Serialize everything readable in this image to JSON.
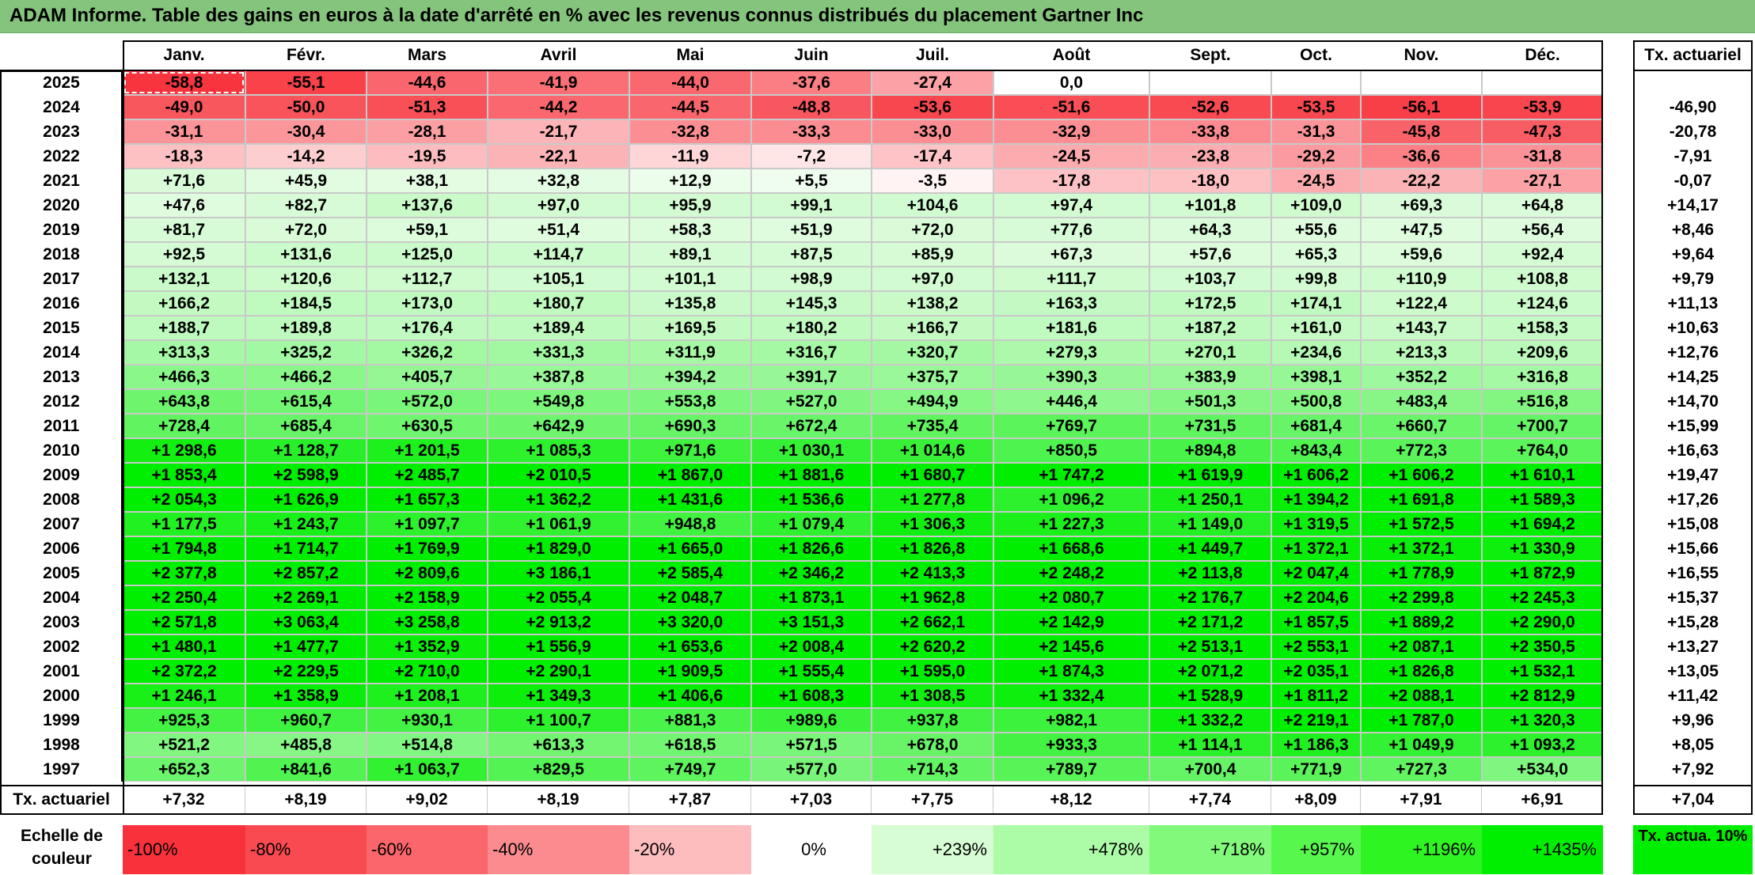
{
  "title": "ADAM Informe. Table des gains en euros à la date d'arrêté en % avec les revenus connus distribués du placement Gartner Inc",
  "months": [
    "Janv.",
    "Févr.",
    "Mars",
    "Avril",
    "Mai",
    "Juin",
    "Juil.",
    "Août",
    "Sept.",
    "Oct.",
    "Nov.",
    "Déc."
  ],
  "tx_header": "Tx. actuariel",
  "rows": [
    {
      "year": "2025",
      "values": [
        "-58,8",
        "-55,1",
        "-44,6",
        "-41,9",
        "-44,0",
        "-37,6",
        "-27,4",
        "0,0",
        "",
        "",
        "",
        ""
      ],
      "tx": ""
    },
    {
      "year": "2024",
      "values": [
        "-49,0",
        "-50,0",
        "-51,3",
        "-44,2",
        "-44,5",
        "-48,8",
        "-53,6",
        "-51,6",
        "-52,6",
        "-53,5",
        "-56,1",
        "-53,9"
      ],
      "tx": "-46,90"
    },
    {
      "year": "2023",
      "values": [
        "-31,1",
        "-30,4",
        "-28,1",
        "-21,7",
        "-32,8",
        "-33,3",
        "-33,0",
        "-32,9",
        "-33,8",
        "-31,3",
        "-45,8",
        "-47,3"
      ],
      "tx": "-20,78"
    },
    {
      "year": "2022",
      "values": [
        "-18,3",
        "-14,2",
        "-19,5",
        "-22,1",
        "-11,9",
        "-7,2",
        "-17,4",
        "-24,5",
        "-23,8",
        "-29,2",
        "-36,6",
        "-31,8"
      ],
      "tx": "-7,91"
    },
    {
      "year": "2021",
      "values": [
        "+71,6",
        "+45,9",
        "+38,1",
        "+32,8",
        "+12,9",
        "+5,5",
        "-3,5",
        "-17,8",
        "-18,0",
        "-24,5",
        "-22,2",
        "-27,1"
      ],
      "tx": "-0,07"
    },
    {
      "year": "2020",
      "values": [
        "+47,6",
        "+82,7",
        "+137,6",
        "+97,0",
        "+95,9",
        "+99,1",
        "+104,6",
        "+97,4",
        "+101,8",
        "+109,0",
        "+69,3",
        "+64,8"
      ],
      "tx": "+14,17"
    },
    {
      "year": "2019",
      "values": [
        "+81,7",
        "+72,0",
        "+59,1",
        "+51,4",
        "+58,3",
        "+51,9",
        "+72,0",
        "+77,6",
        "+64,3",
        "+55,6",
        "+47,5",
        "+56,4"
      ],
      "tx": "+8,46"
    },
    {
      "year": "2018",
      "values": [
        "+92,5",
        "+131,6",
        "+125,0",
        "+114,7",
        "+89,1",
        "+87,5",
        "+85,9",
        "+67,3",
        "+57,6",
        "+65,3",
        "+59,6",
        "+92,4"
      ],
      "tx": "+9,64"
    },
    {
      "year": "2017",
      "values": [
        "+132,1",
        "+120,6",
        "+112,7",
        "+105,1",
        "+101,1",
        "+98,9",
        "+97,0",
        "+111,7",
        "+103,7",
        "+99,8",
        "+110,9",
        "+108,8"
      ],
      "tx": "+9,79"
    },
    {
      "year": "2016",
      "values": [
        "+166,2",
        "+184,5",
        "+173,0",
        "+180,7",
        "+135,8",
        "+145,3",
        "+138,2",
        "+163,3",
        "+172,5",
        "+174,1",
        "+122,4",
        "+124,6"
      ],
      "tx": "+11,13"
    },
    {
      "year": "2015",
      "values": [
        "+188,7",
        "+189,8",
        "+176,4",
        "+189,4",
        "+169,5",
        "+180,2",
        "+166,7",
        "+181,6",
        "+187,2",
        "+161,0",
        "+143,7",
        "+158,3"
      ],
      "tx": "+10,63"
    },
    {
      "year": "2014",
      "values": [
        "+313,3",
        "+325,2",
        "+326,2",
        "+331,3",
        "+311,9",
        "+316,7",
        "+320,7",
        "+279,3",
        "+270,1",
        "+234,6",
        "+213,3",
        "+209,6"
      ],
      "tx": "+12,76"
    },
    {
      "year": "2013",
      "values": [
        "+466,3",
        "+466,2",
        "+405,7",
        "+387,8",
        "+394,2",
        "+391,7",
        "+375,7",
        "+390,3",
        "+383,9",
        "+398,1",
        "+352,2",
        "+316,8"
      ],
      "tx": "+14,25"
    },
    {
      "year": "2012",
      "values": [
        "+643,8",
        "+615,4",
        "+572,0",
        "+549,8",
        "+553,8",
        "+527,0",
        "+494,9",
        "+446,4",
        "+501,3",
        "+500,8",
        "+483,4",
        "+516,8"
      ],
      "tx": "+14,70"
    },
    {
      "year": "2011",
      "values": [
        "+728,4",
        "+685,4",
        "+630,5",
        "+642,9",
        "+690,3",
        "+672,4",
        "+735,4",
        "+769,7",
        "+731,5",
        "+681,4",
        "+660,7",
        "+700,7"
      ],
      "tx": "+15,99"
    },
    {
      "year": "2010",
      "values": [
        "+1 298,6",
        "+1 128,7",
        "+1 201,5",
        "+1 085,3",
        "+971,6",
        "+1 030,1",
        "+1 014,6",
        "+850,5",
        "+894,8",
        "+843,4",
        "+772,3",
        "+764,0"
      ],
      "tx": "+16,63"
    },
    {
      "year": "2009",
      "values": [
        "+1 853,4",
        "+2 598,9",
        "+2 485,7",
        "+2 010,5",
        "+1 867,0",
        "+1 881,6",
        "+1 680,7",
        "+1 747,2",
        "+1 619,9",
        "+1 606,2",
        "+1 606,2",
        "+1 610,1"
      ],
      "tx": "+19,47"
    },
    {
      "year": "2008",
      "values": [
        "+2 054,3",
        "+1 626,9",
        "+1 657,3",
        "+1 362,2",
        "+1 431,6",
        "+1 536,6",
        "+1 277,8",
        "+1 096,2",
        "+1 250,1",
        "+1 394,2",
        "+1 691,8",
        "+1 589,3"
      ],
      "tx": "+17,26"
    },
    {
      "year": "2007",
      "values": [
        "+1 177,5",
        "+1 243,7",
        "+1 097,7",
        "+1 061,9",
        "+948,8",
        "+1 079,4",
        "+1 306,3",
        "+1 227,3",
        "+1 149,0",
        "+1 319,5",
        "+1 572,5",
        "+1 694,2"
      ],
      "tx": "+15,08"
    },
    {
      "year": "2006",
      "values": [
        "+1 794,8",
        "+1 714,7",
        "+1 769,9",
        "+1 829,0",
        "+1 665,0",
        "+1 826,6",
        "+1 826,8",
        "+1 668,6",
        "+1 449,7",
        "+1 372,1",
        "+1 372,1",
        "+1 330,9"
      ],
      "tx": "+15,66"
    },
    {
      "year": "2005",
      "values": [
        "+2 377,8",
        "+2 857,2",
        "+2 809,6",
        "+3 186,1",
        "+2 585,4",
        "+2 346,2",
        "+2 413,3",
        "+2 248,2",
        "+2 113,8",
        "+2 047,4",
        "+1 778,9",
        "+1 872,9"
      ],
      "tx": "+16,55"
    },
    {
      "year": "2004",
      "values": [
        "+2 250,4",
        "+2 269,1",
        "+2 158,9",
        "+2 055,4",
        "+2 048,7",
        "+1 873,1",
        "+1 962,8",
        "+2 080,7",
        "+2 176,7",
        "+2 204,6",
        "+2 299,8",
        "+2 245,3"
      ],
      "tx": "+15,37"
    },
    {
      "year": "2003",
      "values": [
        "+2 571,8",
        "+3 063,4",
        "+3 258,8",
        "+2 913,2",
        "+3 320,0",
        "+3 151,3",
        "+2 662,1",
        "+2 142,9",
        "+2 171,2",
        "+1 857,5",
        "+1 889,2",
        "+2 290,0"
      ],
      "tx": "+15,28"
    },
    {
      "year": "2002",
      "values": [
        "+1 480,1",
        "+1 477,7",
        "+1 352,9",
        "+1 556,9",
        "+1 653,6",
        "+2 008,4",
        "+2 620,2",
        "+2 145,6",
        "+2 513,1",
        "+2 553,1",
        "+2 087,1",
        "+2 350,5"
      ],
      "tx": "+13,27"
    },
    {
      "year": "2001",
      "values": [
        "+2 372,2",
        "+2 229,5",
        "+2 710,0",
        "+2 290,1",
        "+1 909,5",
        "+1 555,4",
        "+1 595,0",
        "+1 874,3",
        "+2 071,2",
        "+2 035,1",
        "+1 826,8",
        "+1 532,1"
      ],
      "tx": "+13,05"
    },
    {
      "year": "2000",
      "values": [
        "+1 246,1",
        "+1 358,9",
        "+1 208,1",
        "+1 349,3",
        "+1 406,6",
        "+1 608,3",
        "+1 308,5",
        "+1 332,4",
        "+1 528,9",
        "+1 811,2",
        "+2 088,1",
        "+2 812,9"
      ],
      "tx": "+11,42"
    },
    {
      "year": "1999",
      "values": [
        "+925,3",
        "+960,7",
        "+930,1",
        "+1 100,7",
        "+881,3",
        "+989,6",
        "+937,8",
        "+982,1",
        "+1 332,2",
        "+2 219,1",
        "+1 787,0",
        "+1 320,3"
      ],
      "tx": "+9,96"
    },
    {
      "year": "1998",
      "values": [
        "+521,2",
        "+485,8",
        "+514,8",
        "+613,3",
        "+618,5",
        "+571,5",
        "+678,0",
        "+933,3",
        "+1 114,1",
        "+1 186,3",
        "+1 049,9",
        "+1 093,2"
      ],
      "tx": "+8,05"
    },
    {
      "year": "1997",
      "values": [
        "+652,3",
        "+841,6",
        "+1 063,7",
        "+829,5",
        "+749,7",
        "+577,0",
        "+714,3",
        "+789,7",
        "+700,4",
        "+771,9",
        "+727,3",
        "+534,0"
      ],
      "tx": "+7,92"
    }
  ],
  "footer": {
    "label": "Tx. actuariel",
    "values": [
      "+7,32",
      "+8,19",
      "+9,02",
      "+8,19",
      "+7,87",
      "+7,03",
      "+7,75",
      "+8,12",
      "+7,74",
      "+8,09",
      "+7,91",
      "+6,91"
    ],
    "tx": "+7,04"
  },
  "legend": {
    "label": "Echelle de couleur",
    "items": [
      {
        "text": "-100%",
        "color": "#f8313a"
      },
      {
        "text": "-80%",
        "color": "#f94a51"
      },
      {
        "text": "-60%",
        "color": "#fa666c"
      },
      {
        "text": "-40%",
        "color": "#fb8b8f"
      },
      {
        "text": "-20%",
        "color": "#fdbcbe"
      },
      {
        "text": "0%",
        "color": "#ffffff"
      },
      {
        "text": "+239%",
        "color": "#d6fdd3"
      },
      {
        "text": "+478%",
        "color": "#acfba6"
      },
      {
        "text": "+718%",
        "color": "#82f97a"
      },
      {
        "text": "+957%",
        "color": "#58f74e"
      },
      {
        "text": "+1196%",
        "color": "#2ef422"
      },
      {
        "text": "+1435%",
        "color": "#00ee00"
      }
    ],
    "tx_label": "Tx. actua. 10%"
  },
  "colors": {
    "title_bg": "#85c47c",
    "negative_max": "#f8313a",
    "positive_max": "#00ee00",
    "tx_positive": "#00ee00"
  }
}
